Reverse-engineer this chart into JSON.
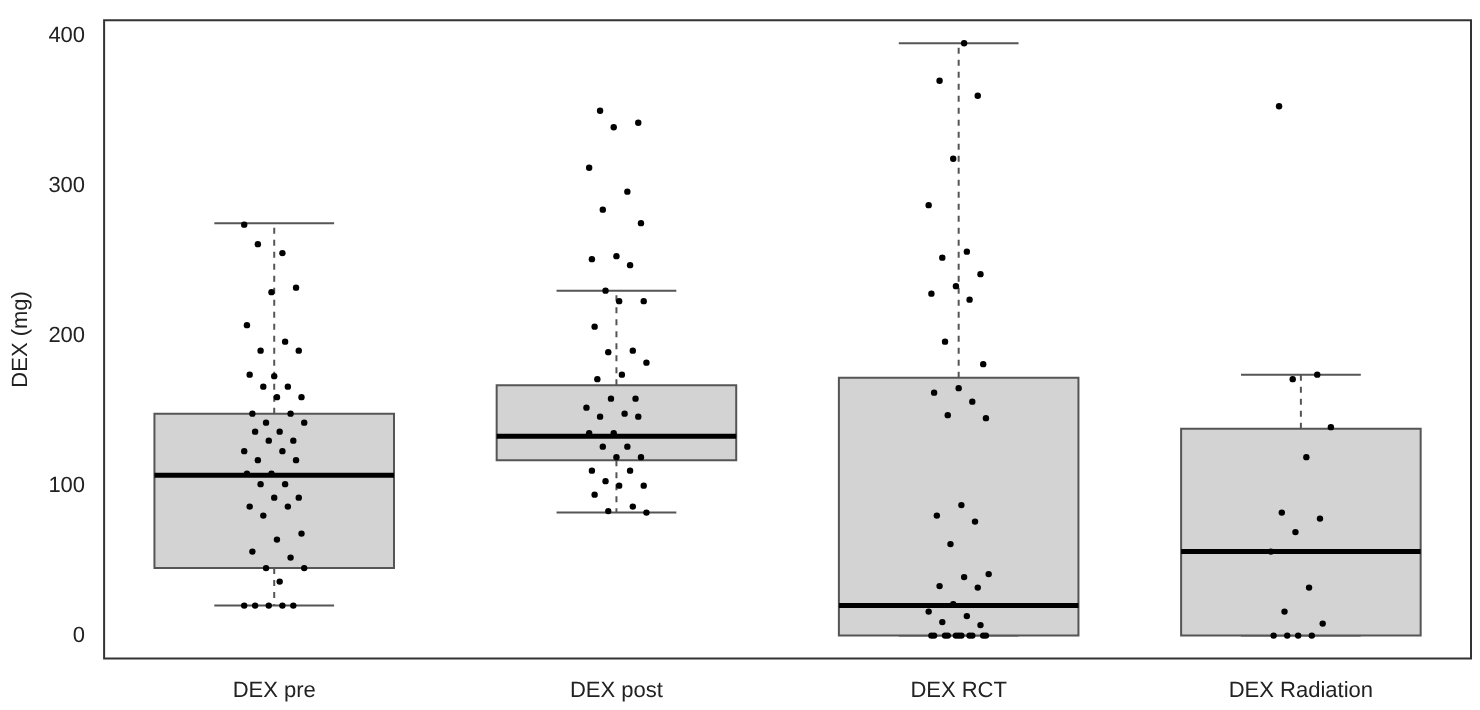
{
  "chart_data": {
    "type": "box",
    "ylabel": "DEX (mg)",
    "categories": [
      "DEX pre",
      "DEX post",
      "DEX RCT",
      "DEX Radiation"
    ],
    "ylim": [
      -16,
      411
    ],
    "yticks": [
      0,
      100,
      200,
      300,
      400
    ],
    "grid": false,
    "legend": false,
    "boxes": [
      {
        "low": 20,
        "q1": 45,
        "median": 107,
        "q3": 148,
        "high": 275
      },
      {
        "low": 82,
        "q1": 117,
        "median": 133,
        "q3": 167,
        "high": 230
      },
      {
        "low": 0,
        "q1": 0,
        "median": 20,
        "q3": 172,
        "high": 395
      },
      {
        "low": 0,
        "q1": 0,
        "median": 56,
        "q3": 138,
        "high": 174
      }
    ],
    "series": [
      {
        "type": "scatter",
        "color": "#000000",
        "marker": "circle",
        "x": [
          "DEX pre",
          "DEX pre",
          "DEX pre",
          "DEX pre",
          "DEX pre",
          "DEX pre",
          "DEX pre",
          "DEX pre",
          "DEX pre",
          "DEX pre",
          "DEX pre",
          "DEX pre",
          "DEX pre",
          "DEX pre",
          "DEX pre",
          "DEX pre",
          "DEX pre",
          "DEX pre",
          "DEX pre",
          "DEX pre",
          "DEX pre",
          "DEX pre",
          "DEX pre",
          "DEX pre",
          "DEX pre",
          "DEX pre",
          "DEX pre",
          "DEX pre",
          "DEX pre",
          "DEX pre",
          "DEX pre",
          "DEX pre",
          "DEX pre",
          "DEX pre",
          "DEX pre",
          "DEX pre",
          "DEX pre",
          "DEX pre",
          "DEX pre",
          "DEX pre",
          "DEX pre",
          "DEX pre",
          "DEX pre",
          "DEX pre",
          "DEX pre",
          "DEX pre",
          "DEX pre",
          "DEX pre",
          "DEX post",
          "DEX post",
          "DEX post",
          "DEX post",
          "DEX post",
          "DEX post",
          "DEX post",
          "DEX post",
          "DEX post",
          "DEX post",
          "DEX post",
          "DEX post",
          "DEX post",
          "DEX post",
          "DEX post",
          "DEX post",
          "DEX post",
          "DEX post",
          "DEX post",
          "DEX post",
          "DEX post",
          "DEX post",
          "DEX post",
          "DEX post",
          "DEX post",
          "DEX post",
          "DEX post",
          "DEX post",
          "DEX post",
          "DEX post",
          "DEX post",
          "DEX post",
          "DEX post",
          "DEX post",
          "DEX post",
          "DEX post",
          "DEX post",
          "DEX post",
          "DEX post",
          "DEX post",
          "DEX RCT",
          "DEX RCT",
          "DEX RCT",
          "DEX RCT",
          "DEX RCT",
          "DEX RCT",
          "DEX RCT",
          "DEX RCT",
          "DEX RCT",
          "DEX RCT",
          "DEX RCT",
          "DEX RCT",
          "DEX RCT",
          "DEX RCT",
          "DEX RCT",
          "DEX RCT",
          "DEX RCT",
          "DEX RCT",
          "DEX RCT",
          "DEX RCT",
          "DEX RCT",
          "DEX RCT",
          "DEX RCT",
          "DEX RCT",
          "DEX RCT",
          "DEX RCT",
          "DEX RCT",
          "DEX RCT",
          "DEX RCT",
          "DEX RCT",
          "DEX RCT",
          "DEX RCT",
          "DEX RCT",
          "DEX RCT",
          "DEX RCT",
          "DEX RCT",
          "DEX RCT",
          "DEX RCT",
          "DEX RCT",
          "DEX RCT",
          "DEX RCT",
          "DEX RCT",
          "DEX Radiation",
          "DEX Radiation",
          "DEX Radiation",
          "DEX Radiation",
          "DEX Radiation",
          "DEX Radiation",
          "DEX Radiation",
          "DEX Radiation",
          "DEX Radiation",
          "DEX Radiation",
          "DEX Radiation",
          "DEX Radiation",
          "DEX Radiation",
          "DEX Radiation",
          "DEX Radiation",
          "DEX Radiation"
        ],
        "values": [
          274,
          255,
          261,
          232,
          229,
          207,
          196,
          190,
          190,
          173,
          174,
          166,
          166,
          159,
          159,
          148,
          148,
          142,
          142,
          136,
          136,
          130,
          130,
          123,
          123,
          117,
          117,
          108,
          108,
          101,
          101,
          92,
          92,
          86,
          86,
          80,
          68,
          64,
          56,
          52,
          45,
          45,
          36,
          20,
          20,
          20,
          20,
          20,
          350,
          342,
          339,
          312,
          296,
          284,
          275,
          253,
          251,
          247,
          230,
          223,
          223,
          206,
          190,
          189,
          182,
          174,
          171,
          158,
          158,
          152,
          148,
          146,
          146,
          135,
          135,
          126,
          126,
          119,
          119,
          110,
          110,
          103,
          100,
          100,
          94,
          86,
          83,
          82,
          395,
          370,
          360,
          318,
          287,
          256,
          252,
          241,
          233,
          228,
          224,
          196,
          181,
          165,
          162,
          156,
          147,
          145,
          87,
          80,
          76,
          61,
          41,
          39,
          33,
          32,
          21,
          16,
          13,
          9,
          7,
          0,
          0,
          0,
          0,
          0,
          0,
          0,
          0,
          0,
          0,
          0,
          353,
          174,
          171,
          139,
          119,
          82,
          78,
          69,
          56,
          32,
          16,
          8,
          0,
          0,
          0,
          0
        ]
      }
    ]
  }
}
